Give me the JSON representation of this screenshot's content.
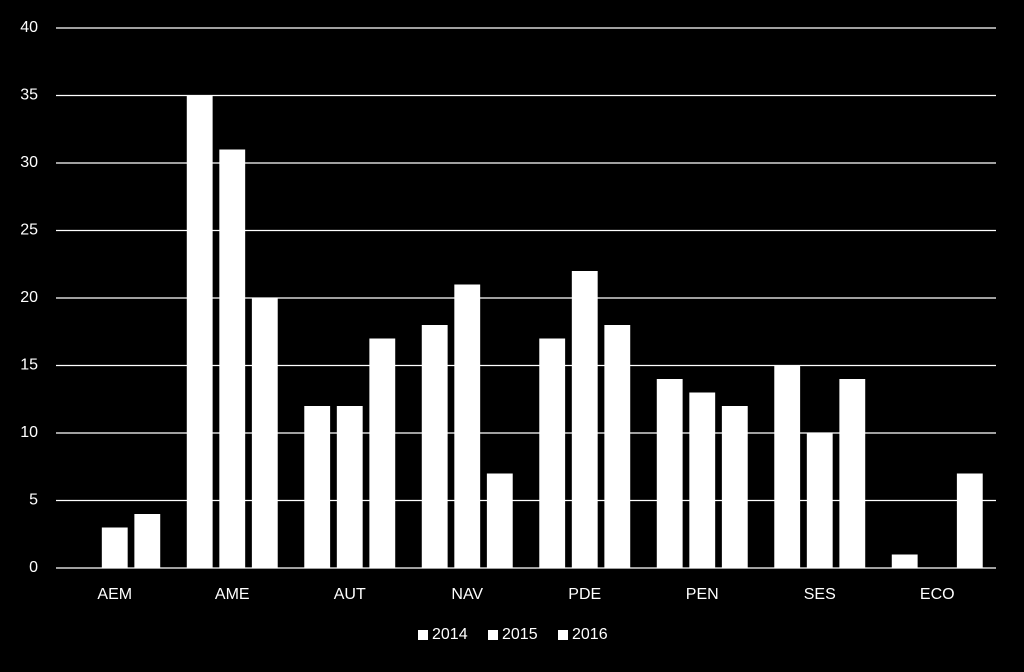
{
  "chart_data": {
    "type": "bar",
    "categories": [
      "AEM",
      "AME",
      "AUT",
      "NAV",
      "PDE",
      "PEN",
      "SES",
      "ECO"
    ],
    "series": [
      {
        "name": "2014",
        "color": "#ffffff",
        "values": [
          0,
          35,
          12,
          18,
          17,
          14,
          15,
          1
        ]
      },
      {
        "name": "2015",
        "color": "#ffffff",
        "values": [
          3,
          31,
          12,
          21,
          22,
          13,
          10,
          0
        ]
      },
      {
        "name": "2016",
        "color": "#ffffff",
        "values": [
          4,
          20,
          17,
          7,
          18,
          12,
          14,
          7
        ]
      }
    ],
    "ylim": [
      0,
      40
    ],
    "yticks": [
      0,
      5,
      10,
      15,
      20,
      25,
      30,
      35,
      40
    ],
    "grid": true,
    "legend": "bottom"
  }
}
